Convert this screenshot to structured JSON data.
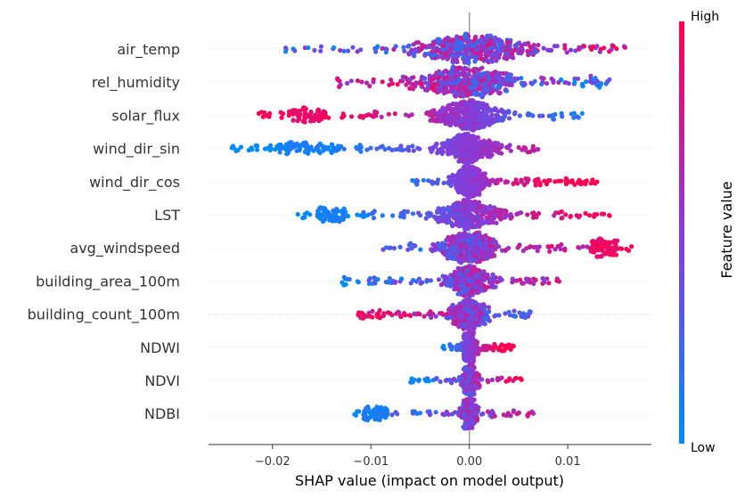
{
  "chart_data": {
    "type": "scatter",
    "subtype": "shap-beeswarm",
    "title": "",
    "xlabel": "SHAP value (impact on model output)",
    "ylabel": "",
    "xlim": [
      -0.0265,
      0.0185
    ],
    "xticks": [
      -0.02,
      -0.01,
      0.0,
      0.01
    ],
    "xtick_labels": [
      "−0.02",
      "−0.01",
      "0.00",
      "0.01"
    ],
    "grid": false,
    "colorbar": {
      "title": "Feature value",
      "high_label": "High",
      "low_label": "Low",
      "high_color": "#ff0052",
      "mid_color": "#8a3ad8",
      "low_color": "#008bfb"
    },
    "zero_line_color": "#999999",
    "features": [
      {
        "name": "air_temp",
        "min": -0.0195,
        "max": 0.0165,
        "spread": 0.0075,
        "density": 1.0,
        "low_side": "neg",
        "color_contrast": 0.35,
        "clusters": []
      },
      {
        "name": "rel_humidity",
        "min": -0.0135,
        "max": 0.0145,
        "spread": 0.0065,
        "density": 0.95,
        "low_side": "pos",
        "color_contrast": 0.4,
        "clusters": []
      },
      {
        "name": "solar_flux",
        "min": -0.0215,
        "max": 0.0115,
        "spread": 0.0045,
        "density": 0.9,
        "low_side": "pos",
        "color_contrast": 0.8,
        "clusters": [
          {
            "at": -0.0165,
            "width": 0.004,
            "side": "high"
          }
        ]
      },
      {
        "name": "wind_dir_sin",
        "min": -0.0245,
        "max": 0.0075,
        "spread": 0.0035,
        "density": 0.9,
        "low_side": "neg",
        "color_contrast": 0.85,
        "clusters": [
          {
            "at": -0.0165,
            "width": 0.006,
            "side": "low"
          }
        ]
      },
      {
        "name": "wind_dir_cos",
        "min": -0.006,
        "max": 0.013,
        "spread": 0.0022,
        "density": 0.95,
        "low_side": "neg",
        "color_contrast": 0.85,
        "clusters": []
      },
      {
        "name": "LST",
        "min": -0.0175,
        "max": 0.0145,
        "spread": 0.004,
        "density": 0.9,
        "low_side": "neg",
        "color_contrast": 0.75,
        "clusters": [
          {
            "at": -0.014,
            "width": 0.003,
            "side": "low"
          }
        ]
      },
      {
        "name": "avg_windspeed",
        "min": -0.009,
        "max": 0.0165,
        "spread": 0.004,
        "density": 0.9,
        "low_side": "neg",
        "color_contrast": 0.55,
        "clusters": [
          {
            "at": 0.0135,
            "width": 0.003,
            "side": "high"
          }
        ]
      },
      {
        "name": "building_area_100m",
        "min": -0.013,
        "max": 0.0095,
        "spread": 0.003,
        "density": 0.85,
        "low_side": "neg",
        "color_contrast": 0.5,
        "clusters": []
      },
      {
        "name": "building_count_100m",
        "min": -0.0115,
        "max": 0.0065,
        "spread": 0.0025,
        "density": 0.75,
        "low_side": "pos",
        "color_contrast": 0.55,
        "clusters": []
      },
      {
        "name": "NDWI",
        "min": -0.0028,
        "max": 0.0045,
        "spread": 0.001,
        "density": 0.65,
        "low_side": "neg",
        "color_contrast": 0.9,
        "clusters": []
      },
      {
        "name": "NDVI",
        "min": -0.006,
        "max": 0.0055,
        "spread": 0.001,
        "density": 0.55,
        "low_side": "neg",
        "color_contrast": 0.6,
        "clusters": []
      },
      {
        "name": "NDBI",
        "min": -0.012,
        "max": 0.007,
        "spread": 0.001,
        "density": 0.55,
        "low_side": "neg",
        "color_contrast": 0.6,
        "clusters": [
          {
            "at": -0.0095,
            "width": 0.0025,
            "side": "low"
          }
        ]
      }
    ]
  }
}
